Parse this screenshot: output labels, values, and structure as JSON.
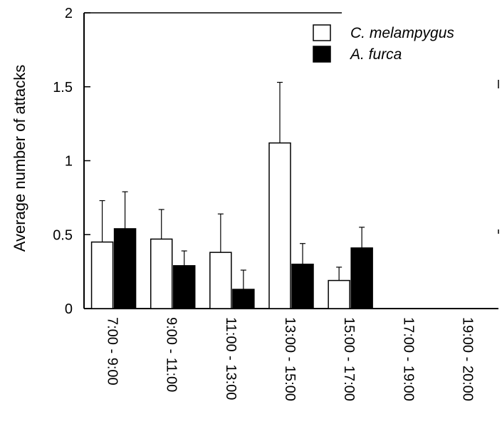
{
  "chart_data": {
    "type": "bar",
    "title": "",
    "xlabel": "",
    "ylabel": "Average number of attacks",
    "ylim": [
      0,
      2
    ],
    "yticks": [
      0,
      0.5,
      1,
      1.5,
      2
    ],
    "ytick_labels": [
      "0",
      "0.5",
      "1",
      "1.5",
      "2"
    ],
    "categories": [
      "7:00 - 9:00",
      "9:00 - 11:00",
      "11:00 - 13:00",
      "13:00 - 15:00",
      "15:00 - 17:00",
      "17:00 - 19:00",
      "19:00 - 20:00"
    ],
    "legend_position": "top-right",
    "grid": false,
    "series": [
      {
        "name": "C. melampygus",
        "fill": "#ffffff",
        "values": [
          0.45,
          0.47,
          0.38,
          1.12,
          0.19,
          0,
          0
        ],
        "error": [
          0.28,
          0.2,
          0.26,
          0.41,
          0.09,
          0,
          0
        ]
      },
      {
        "name": "A. furca",
        "fill": "#000000",
        "values": [
          0.54,
          0.29,
          0.13,
          0.3,
          0.41,
          0,
          0
        ],
        "error": [
          0.25,
          0.1,
          0.13,
          0.14,
          0.14,
          0,
          0
        ]
      }
    ]
  }
}
